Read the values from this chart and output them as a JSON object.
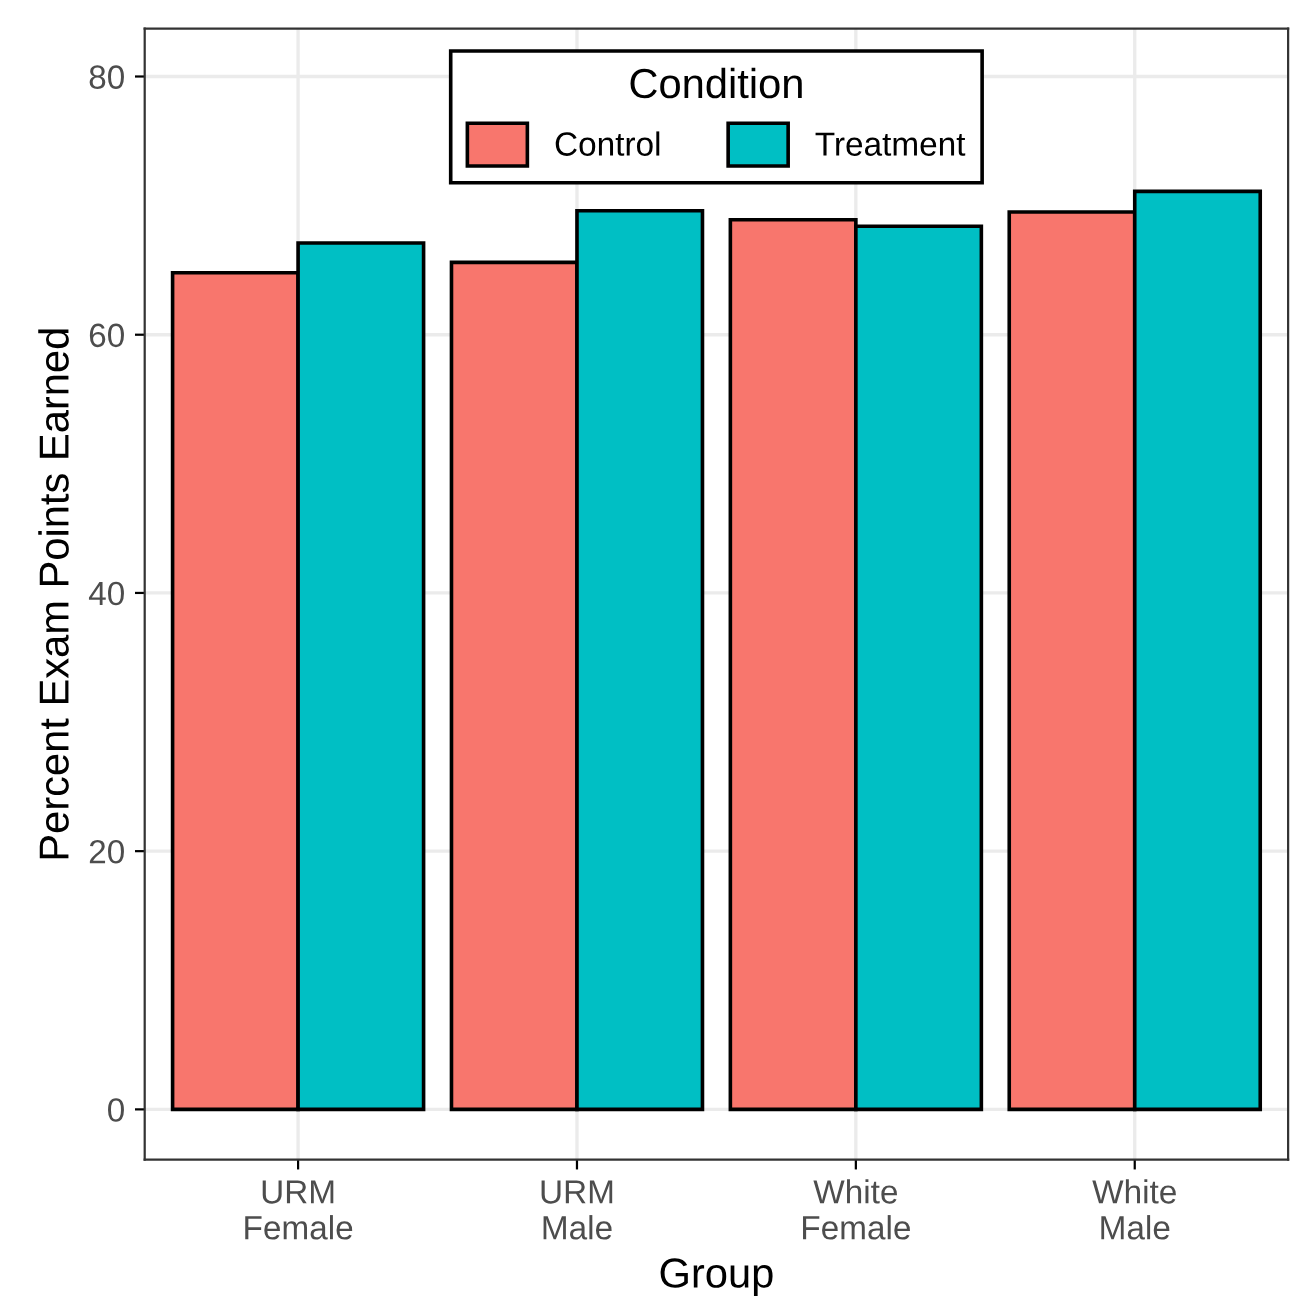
{
  "chart_data": {
    "type": "bar",
    "xlabel": "Group",
    "ylabel": "Percent Exam Points Earned",
    "legend_title": "Condition",
    "categories": [
      "URM\nFemale",
      "URM\nMale",
      "White\nFemale",
      "White\nMale"
    ],
    "series": [
      {
        "name": "Control",
        "color": "#f8766d",
        "values": [
          64.8,
          65.6,
          68.9,
          69.5
        ]
      },
      {
        "name": "Treatment",
        "color": "#00bfc4",
        "values": [
          67.1,
          69.6,
          68.4,
          71.1
        ]
      }
    ],
    "ylim": [
      -3.9,
      83.7
    ],
    "yticks": [
      0,
      20,
      40,
      60,
      80
    ],
    "grid": true,
    "legend": "top"
  }
}
